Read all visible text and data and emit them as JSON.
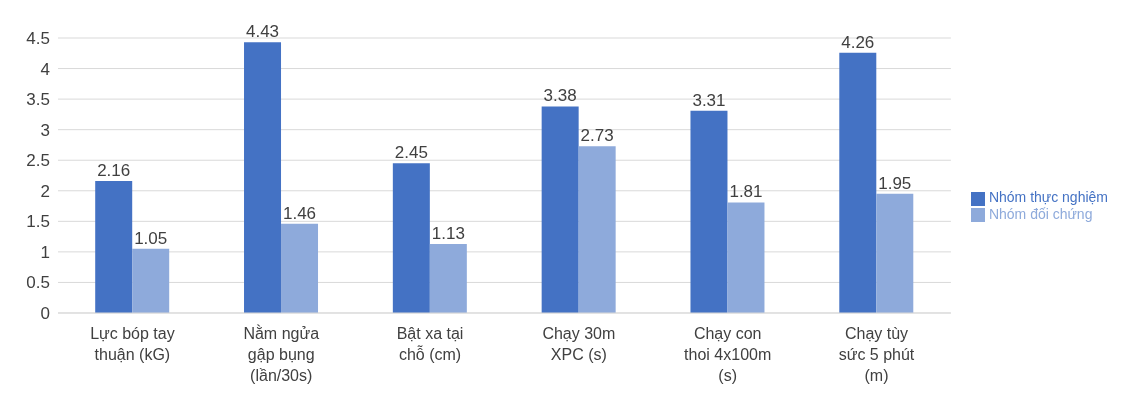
{
  "chart_data": {
    "type": "bar",
    "categories": [
      "Lực bóp tay thuận (kG)",
      "Nằm ngửa gập bụng (lần/30s)",
      "Bật xa tại chỗ (cm)",
      "Chạy 30m XPC (s)",
      "Chạy con thoi 4x100m (s)",
      "Chạy tùy sức 5 phút (m)"
    ],
    "series": [
      {
        "name": "Nhóm thực nghiệm",
        "color": "#4472c4",
        "values": [
          2.16,
          4.43,
          2.45,
          3.38,
          3.31,
          4.26
        ]
      },
      {
        "name": "Nhóm đối chứng",
        "color": "#8eaadb",
        "values": [
          1.05,
          1.46,
          1.13,
          2.73,
          1.81,
          1.95
        ]
      }
    ],
    "ylim": [
      0,
      4.5
    ],
    "yticks": [
      0,
      0.5,
      1,
      1.5,
      2,
      2.5,
      3,
      3.5,
      4,
      4.5
    ],
    "grid": "y",
    "legend": "right",
    "data_labels": true
  }
}
